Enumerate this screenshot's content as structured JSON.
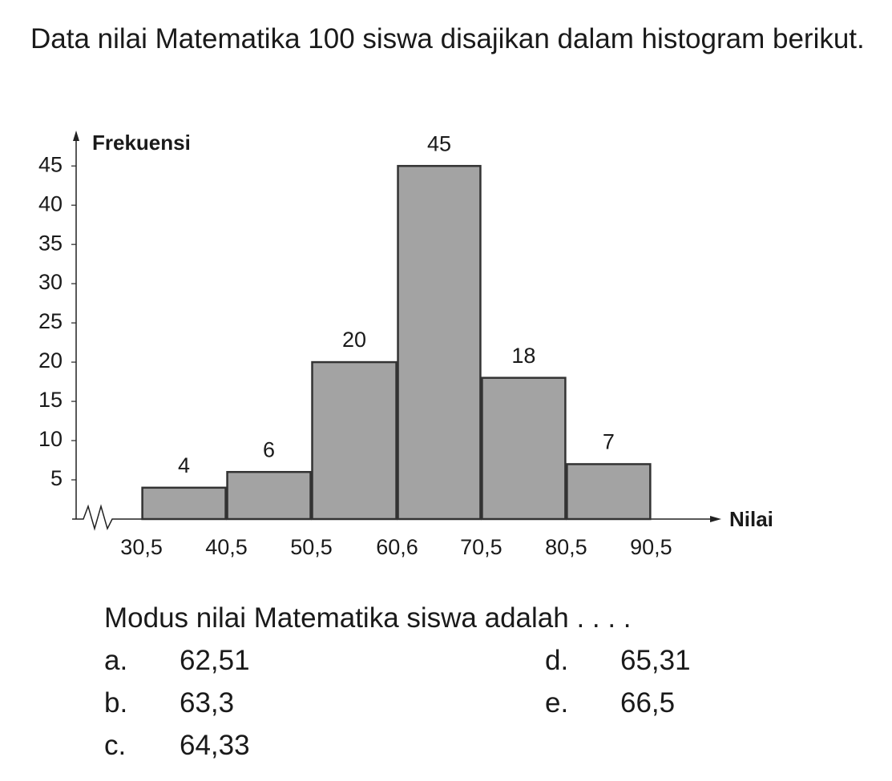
{
  "intro": "Data nilai Matematika 100 siswa disajikan dalam histogram berikut.",
  "chart_data": {
    "type": "histogram",
    "y_label": "Frekuensi",
    "x_label": "Nilai",
    "bins": [
      30.5,
      40.5,
      50.5,
      60.6,
      70.5,
      80.5,
      90.5
    ],
    "counts": [
      4,
      6,
      20,
      45,
      18,
      7
    ],
    "color": "#a3a3a3",
    "xlim": [
      22.8,
      98.3
    ],
    "xticks": [
      {
        "value": 30.5,
        "label": "30,5"
      },
      {
        "value": 40.5,
        "label": "40,5"
      },
      {
        "value": 50.5,
        "label": "50,5"
      },
      {
        "value": 60.6,
        "label": "60,6"
      },
      {
        "value": 70.5,
        "label": "70,5"
      },
      {
        "value": 80.5,
        "label": "80,5"
      },
      {
        "value": 90.5,
        "label": "90,5"
      }
    ],
    "ylim": [
      0,
      49
    ],
    "yticks": [
      5,
      10,
      15,
      20,
      25,
      30,
      35,
      40,
      45
    ]
  },
  "question": "Modus nilai Matematika siswa adalah . . . .",
  "options": [
    {
      "letter": "a.",
      "text": "62,51"
    },
    {
      "letter": "b.",
      "text": "63,3"
    },
    {
      "letter": "c.",
      "text": "64,33"
    },
    {
      "letter": "d.",
      "text": "65,31"
    },
    {
      "letter": "e.",
      "text": "66,5"
    }
  ]
}
